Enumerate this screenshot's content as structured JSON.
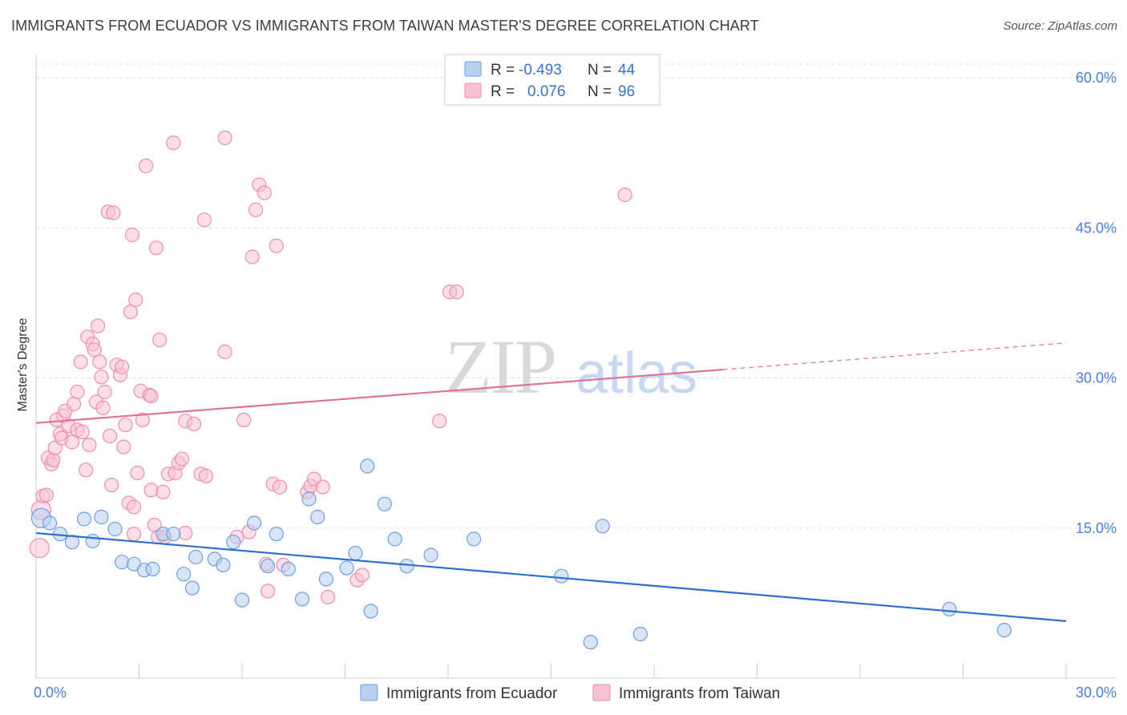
{
  "title": "IMMIGRANTS FROM ECUADOR VS IMMIGRANTS FROM TAIWAN MASTER'S DEGREE CORRELATION CHART",
  "source": "Source: ZipAtlas.com",
  "watermark": {
    "zip": "ZIP",
    "atlas": "atlas"
  },
  "legend": {
    "rows": [
      {
        "r_label": "R =",
        "r_value": "-0.493",
        "n_label": "N =",
        "n_value": "44"
      },
      {
        "r_label": "R =",
        "r_value": "0.076",
        "n_label": "N =",
        "n_value": "96"
      }
    ]
  },
  "bottom_legend": [
    "Immigrants from Ecuador",
    "Immigrants from Taiwan"
  ],
  "colors": {
    "ecuador_fill": "#b8d0f0",
    "ecuador_stroke": "#6f9fe0",
    "ecuador_line": "#2f6fcf",
    "taiwan_fill": "#f7c3d3",
    "taiwan_stroke": "#ec8fae",
    "taiwan_line": "#e0719a",
    "tick_label": "#4a7fd4",
    "grid": "#dddddd"
  },
  "chart_data": {
    "type": "scatter",
    "title": "IMMIGRANTS FROM ECUADOR VS IMMIGRANTS FROM TAIWAN MASTER'S DEGREE CORRELATION CHART",
    "xlabel": "",
    "ylabel": "Master's Degree",
    "xlim": [
      0,
      30
    ],
    "ylim": [
      0,
      60
    ],
    "x_tick_labels": [
      "0.0%",
      "30.0%"
    ],
    "y_ticks": [
      15,
      30,
      45,
      60
    ],
    "y_tick_labels": [
      "15.0%",
      "30.0%",
      "45.0%",
      "60.0%"
    ],
    "grid": true,
    "legend_position": "top-center",
    "series": [
      {
        "name": "Immigrants from Ecuador",
        "r": -0.493,
        "n": 44,
        "trend": {
          "x": [
            0,
            30
          ],
          "y": [
            14.5,
            5.7
          ],
          "dashed_from": null
        },
        "points": [
          [
            0.15,
            16.0
          ],
          [
            0.4,
            15.5
          ],
          [
            0.7,
            14.4
          ],
          [
            1.05,
            13.6
          ],
          [
            1.4,
            15.9
          ],
          [
            1.65,
            13.7
          ],
          [
            1.9,
            16.1
          ],
          [
            2.3,
            14.9
          ],
          [
            2.5,
            11.6
          ],
          [
            2.85,
            11.4
          ],
          [
            3.15,
            10.8
          ],
          [
            3.4,
            10.9
          ],
          [
            3.7,
            14.4
          ],
          [
            4.0,
            14.4
          ],
          [
            4.3,
            10.4
          ],
          [
            4.55,
            9.0
          ],
          [
            4.65,
            12.1
          ],
          [
            5.2,
            11.9
          ],
          [
            5.45,
            11.3
          ],
          [
            5.75,
            13.6
          ],
          [
            6.0,
            7.8
          ],
          [
            6.35,
            15.5
          ],
          [
            6.75,
            11.2
          ],
          [
            7.0,
            14.4
          ],
          [
            7.35,
            10.9
          ],
          [
            7.75,
            7.9
          ],
          [
            7.95,
            17.9
          ],
          [
            8.2,
            16.1
          ],
          [
            8.45,
            9.9
          ],
          [
            9.05,
            11.0
          ],
          [
            9.3,
            12.5
          ],
          [
            9.75,
            6.7
          ],
          [
            9.65,
            21.2
          ],
          [
            10.15,
            17.4
          ],
          [
            10.45,
            13.9
          ],
          [
            10.8,
            11.2
          ],
          [
            11.5,
            12.3
          ],
          [
            12.75,
            13.9
          ],
          [
            15.3,
            10.2
          ],
          [
            16.15,
            3.6
          ],
          [
            16.5,
            15.2
          ],
          [
            17.6,
            4.4
          ],
          [
            26.6,
            6.9
          ],
          [
            28.2,
            4.8
          ]
        ]
      },
      {
        "name": "Immigrants from Taiwan",
        "r": 0.076,
        "n": 96,
        "trend": {
          "x": [
            0,
            30
          ],
          "y": [
            25.5,
            33.5
          ],
          "dashed_from": 20.0
        },
        "points": [
          [
            0.1,
            13.0
          ],
          [
            0.15,
            16.8
          ],
          [
            0.2,
            18.2
          ],
          [
            0.3,
            18.3
          ],
          [
            0.35,
            22.0
          ],
          [
            0.45,
            21.4
          ],
          [
            0.5,
            21.8
          ],
          [
            0.55,
            23.0
          ],
          [
            0.6,
            25.8
          ],
          [
            0.7,
            24.4
          ],
          [
            0.75,
            24.0
          ],
          [
            0.8,
            26.2
          ],
          [
            0.85,
            26.7
          ],
          [
            0.95,
            25.2
          ],
          [
            1.05,
            23.6
          ],
          [
            1.1,
            27.4
          ],
          [
            1.2,
            24.8
          ],
          [
            1.2,
            28.6
          ],
          [
            1.3,
            31.6
          ],
          [
            1.35,
            24.6
          ],
          [
            1.45,
            20.8
          ],
          [
            1.5,
            34.1
          ],
          [
            1.55,
            23.3
          ],
          [
            1.65,
            33.4
          ],
          [
            1.7,
            32.8
          ],
          [
            1.75,
            27.6
          ],
          [
            1.8,
            35.2
          ],
          [
            1.85,
            31.6
          ],
          [
            1.9,
            30.1
          ],
          [
            1.95,
            27.0
          ],
          [
            2.0,
            28.6
          ],
          [
            2.15,
            24.2
          ],
          [
            2.2,
            19.3
          ],
          [
            2.35,
            31.3
          ],
          [
            2.45,
            30.3
          ],
          [
            2.5,
            31.1
          ],
          [
            2.55,
            23.1
          ],
          [
            2.6,
            25.3
          ],
          [
            2.7,
            17.5
          ],
          [
            2.75,
            36.6
          ],
          [
            2.85,
            14.4
          ],
          [
            2.9,
            37.8
          ],
          [
            2.95,
            20.5
          ],
          [
            3.05,
            28.7
          ],
          [
            3.1,
            25.8
          ],
          [
            3.3,
            28.3
          ],
          [
            3.35,
            18.8
          ],
          [
            3.45,
            15.3
          ],
          [
            3.55,
            14.1
          ],
          [
            3.6,
            33.8
          ],
          [
            3.7,
            18.6
          ],
          [
            3.85,
            20.4
          ],
          [
            4.05,
            20.5
          ],
          [
            4.15,
            21.5
          ],
          [
            4.25,
            21.9
          ],
          [
            4.35,
            14.5
          ],
          [
            4.35,
            25.7
          ],
          [
            4.6,
            25.4
          ],
          [
            4.8,
            20.4
          ],
          [
            4.0,
            53.5
          ],
          [
            3.2,
            51.2
          ],
          [
            2.1,
            46.6
          ],
          [
            2.8,
            44.3
          ],
          [
            2.85,
            17.1
          ],
          [
            3.5,
            43.0
          ],
          [
            2.25,
            46.5
          ],
          [
            5.5,
            54.0
          ],
          [
            4.9,
            45.8
          ],
          [
            5.5,
            32.6
          ],
          [
            5.85,
            14.1
          ],
          [
            6.05,
            25.8
          ],
          [
            6.3,
            42.1
          ],
          [
            6.4,
            46.8
          ],
          [
            6.5,
            49.3
          ],
          [
            6.65,
            48.5
          ],
          [
            6.7,
            11.4
          ],
          [
            6.75,
            8.7
          ],
          [
            6.9,
            19.4
          ],
          [
            7.0,
            43.2
          ],
          [
            7.1,
            19.1
          ],
          [
            7.2,
            11.3
          ],
          [
            7.9,
            18.6
          ],
          [
            8.0,
            19.2
          ],
          [
            8.1,
            19.9
          ],
          [
            8.35,
            19.1
          ],
          [
            8.5,
            8.1
          ],
          [
            9.35,
            9.8
          ],
          [
            9.5,
            10.3
          ],
          [
            11.75,
            25.7
          ],
          [
            12.05,
            38.6
          ],
          [
            12.25,
            38.6
          ],
          [
            17.15,
            48.3
          ],
          [
            6.2,
            14.6
          ],
          [
            3.75,
            14.1
          ],
          [
            4.95,
            20.2
          ],
          [
            3.35,
            28.2
          ]
        ]
      }
    ]
  }
}
